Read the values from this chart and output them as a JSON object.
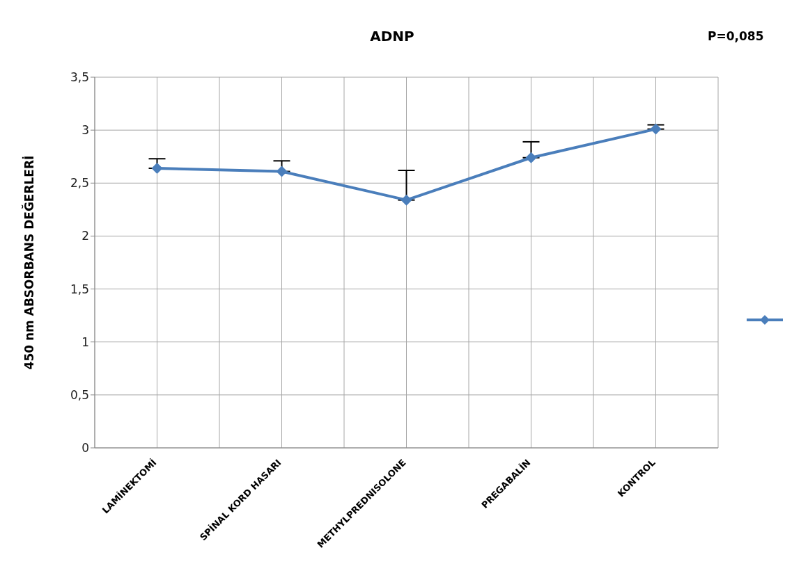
{
  "chart_data": {
    "type": "line",
    "title": "ADNP",
    "ylabel": "450 nm ABSORBANS DEĞERLERİ",
    "annotations": [
      "P=0,085"
    ],
    "categories": [
      "LAMİNEKTOMİ",
      "SPİNAL KORD HASARI",
      "METHYLPREDNISOLONE",
      "PREGABALİN",
      "KONTROL"
    ],
    "series": [
      {
        "color": "#4a7ebb",
        "values": [
          2.64,
          2.61,
          2.34,
          2.74,
          3.01
        ],
        "errors": [
          [
            2.64,
            2.73
          ],
          [
            2.61,
            2.71
          ],
          [
            2.34,
            2.62
          ],
          [
            2.74,
            2.89
          ],
          [
            3.01,
            3.05
          ]
        ]
      }
    ],
    "ylim": [
      0,
      3.5
    ],
    "yticks": [
      0,
      {
        "value": 0.5,
        "label": "0,5"
      },
      1,
      {
        "value": 1.5,
        "label": "1,5"
      },
      2,
      {
        "value": 2.5,
        "label": "2,5"
      },
      3,
      {
        "value": 3.5,
        "label": "3,5"
      }
    ],
    "grid": true,
    "marker": "diamond",
    "line_style": "solid"
  }
}
